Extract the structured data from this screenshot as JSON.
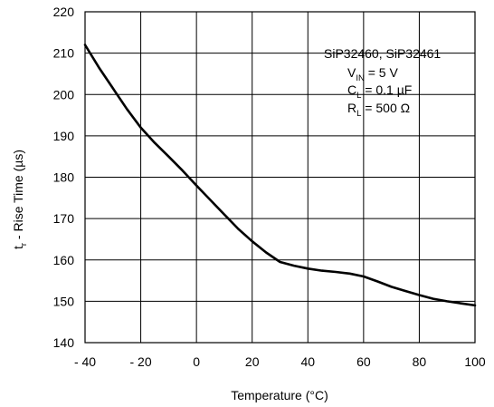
{
  "chart_data": {
    "type": "line",
    "xlabel": "Temperature (°C)",
    "ylabel_parts": {
      "main": "t",
      "sub": "r",
      "rest": " - Rise Time (µs)"
    },
    "xlim": [
      -40,
      100
    ],
    "ylim": [
      140,
      220
    ],
    "xticks": [
      -40,
      -20,
      0,
      20,
      40,
      60,
      80,
      100
    ],
    "xtick_labels": [
      "- 40",
      "- 20",
      "0",
      "20",
      "40",
      "60",
      "80",
      "100"
    ],
    "yticks": [
      140,
      150,
      160,
      170,
      180,
      190,
      200,
      210,
      220
    ],
    "ytick_labels": [
      "140",
      "150",
      "160",
      "170",
      "180",
      "190",
      "200",
      "210",
      "220"
    ],
    "grid": true,
    "series": [
      {
        "x": [
          -40,
          -35,
          -30,
          -25,
          -20,
          -15,
          -10,
          -5,
          0,
          5,
          10,
          15,
          20,
          25,
          30,
          35,
          40,
          45,
          50,
          55,
          60,
          65,
          70,
          75,
          80,
          85,
          90,
          95,
          100
        ],
        "y": [
          212,
          206.5,
          201.5,
          196.5,
          192,
          188.3,
          185,
          181.6,
          178,
          174.5,
          171,
          167.5,
          164.5,
          161.8,
          159.5,
          158.6,
          157.9,
          157.4,
          157.1,
          156.7,
          156,
          154.8,
          153.5,
          152.5,
          151.5,
          150.6,
          150,
          149.5,
          149
        ]
      }
    ],
    "annotation": {
      "line1": "SiP32460, SiP32461",
      "vin": {
        "main": "V",
        "sub": "IN",
        "rest": " = 5 V"
      },
      "cl": {
        "main": "C",
        "sub": "L",
        "rest": " = 0.1 µF"
      },
      "rl": {
        "main": "R",
        "sub": "L",
        "rest": " = 500 Ω"
      }
    }
  }
}
